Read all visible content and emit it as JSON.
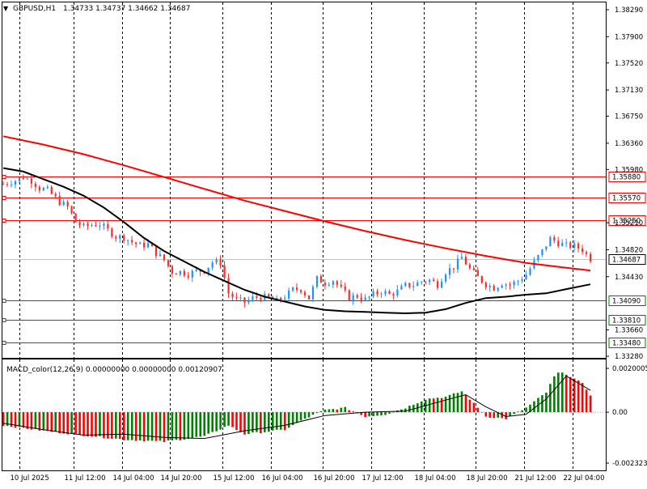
{
  "header": {
    "symbol": "GBPUSD,H1",
    "ohlc": "1.34733 1.34737 1.34662 1.34687"
  },
  "macd_header": "MACD_color(12,26,9) 0.00000000 0.00000000 0.00120907",
  "colors": {
    "bull_candle": "#1e90ff",
    "bear_candle": "#ff2a2a",
    "ma_fast": "#000000",
    "ma_slow": "#ff0000",
    "resistance": "#ff0000",
    "support": "#008000",
    "hist_pos": "#008000",
    "hist_neg": "#ff0000",
    "signal": "#000000",
    "grid": "#000000",
    "current_price_tag": "#000000"
  },
  "chart_data": [
    {
      "type": "candlestick",
      "symbol": "GBPUSD",
      "timeframe": "H1",
      "ylim": [
        1.3328,
        1.3829
      ],
      "yticks": [
        "1.38290",
        "1.37900",
        "1.37520",
        "1.37130",
        "1.36750",
        "1.36360",
        "1.35980",
        "1.35210",
        "1.34820",
        "1.34430",
        "1.33660",
        "1.33280"
      ],
      "xticks": [
        "10 Jul 2025",
        "11 Jul 12:00",
        "14 Jul 04:00",
        "14 Jul 20:00",
        "15 Jul 12:00",
        "16 Jul 04:00",
        "16 Jul 20:00",
        "17 Jul 12:00",
        "18 Jul 04:00",
        "18 Jul 20:00",
        "21 Jul 12:00",
        "22 Jul 04:00"
      ],
      "current_price": "1.34687",
      "horizontal_levels": {
        "resistance": [
          "1.35880",
          "1.35570",
          "1.35250"
        ],
        "support": [
          "1.34090",
          "1.33810",
          "1.33480"
        ]
      },
      "close_path": [
        [
          0,
          1.3577
        ],
        [
          6,
          1.3582
        ],
        [
          10,
          1.3587
        ],
        [
          14,
          1.3582
        ],
        [
          18,
          1.3571
        ],
        [
          22,
          1.3568
        ],
        [
          28,
          1.3551
        ],
        [
          32,
          1.3544
        ],
        [
          36,
          1.3522
        ],
        [
          40,
          1.3515
        ],
        [
          44,
          1.3518
        ],
        [
          48,
          1.3519
        ],
        [
          52,
          1.351
        ],
        [
          56,
          1.3501
        ],
        [
          60,
          1.35
        ],
        [
          64,
          1.3493
        ],
        [
          68,
          1.3488
        ],
        [
          72,
          1.349
        ],
        [
          76,
          1.3477
        ],
        [
          80,
          1.3467
        ],
        [
          84,
          1.345
        ],
        [
          88,
          1.345
        ],
        [
          92,
          1.3447
        ],
        [
          96,
          1.3451
        ],
        [
          100,
          1.3452
        ],
        [
          104,
          1.3464
        ],
        [
          108,
          1.3463
        ],
        [
          112,
          1.3419
        ],
        [
          116,
          1.341
        ],
        [
          120,
          1.3406
        ],
        [
          124,
          1.3412
        ],
        [
          128,
          1.3414
        ],
        [
          132,
          1.3412
        ],
        [
          136,
          1.3408
        ],
        [
          140,
          1.3414
        ],
        [
          144,
          1.3424
        ],
        [
          148,
          1.3425
        ],
        [
          152,
          1.3412
        ],
        [
          156,
          1.344
        ],
        [
          160,
          1.3434
        ],
        [
          164,
          1.3438
        ],
        [
          168,
          1.3425
        ],
        [
          172,
          1.3413
        ],
        [
          176,
          1.3415
        ],
        [
          180,
          1.341
        ],
        [
          184,
          1.3417
        ],
        [
          188,
          1.3422
        ],
        [
          192,
          1.3417
        ],
        [
          196,
          1.3422
        ],
        [
          200,
          1.343
        ],
        [
          204,
          1.3431
        ],
        [
          208,
          1.3436
        ],
        [
          212,
          1.3438
        ],
        [
          216,
          1.3432
        ],
        [
          220,
          1.345
        ],
        [
          224,
          1.3457
        ],
        [
          228,
          1.3471
        ],
        [
          232,
          1.3454
        ],
        [
          236,
          1.3442
        ],
        [
          240,
          1.3432
        ],
        [
          244,
          1.3427
        ],
        [
          248,
          1.3434
        ],
        [
          252,
          1.3431
        ],
        [
          256,
          1.3437
        ],
        [
          260,
          1.3446
        ],
        [
          264,
          1.3464
        ],
        [
          268,
          1.348
        ],
        [
          272,
          1.3498
        ],
        [
          276,
          1.3492
        ],
        [
          280,
          1.3488
        ],
        [
          284,
          1.3487
        ],
        [
          288,
          1.3482
        ],
        [
          290,
          1.3475
        ],
        [
          292,
          1.3469
        ]
      ],
      "ma_fast": [
        [
          0,
          1.36
        ],
        [
          10,
          1.3595
        ],
        [
          20,
          1.3584
        ],
        [
          30,
          1.3573
        ],
        [
          40,
          1.356
        ],
        [
          50,
          1.3543
        ],
        [
          60,
          1.3522
        ],
        [
          70,
          1.3499
        ],
        [
          80,
          1.348
        ],
        [
          90,
          1.3465
        ],
        [
          100,
          1.345
        ],
        [
          110,
          1.3437
        ],
        [
          120,
          1.3424
        ],
        [
          130,
          1.3414
        ],
        [
          140,
          1.3407
        ],
        [
          150,
          1.34
        ],
        [
          160,
          1.3395
        ],
        [
          170,
          1.3393
        ],
        [
          180,
          1.3392
        ],
        [
          190,
          1.3391
        ],
        [
          200,
          1.339
        ],
        [
          210,
          1.3391
        ],
        [
          220,
          1.3396
        ],
        [
          230,
          1.3405
        ],
        [
          240,
          1.3412
        ],
        [
          250,
          1.3414
        ],
        [
          260,
          1.3417
        ],
        [
          270,
          1.3419
        ],
        [
          280,
          1.3425
        ],
        [
          292,
          1.3432
        ]
      ],
      "ma_slow": [
        [
          0,
          1.3646
        ],
        [
          20,
          1.3634
        ],
        [
          40,
          1.362
        ],
        [
          60,
          1.3604
        ],
        [
          80,
          1.3587
        ],
        [
          100,
          1.357
        ],
        [
          120,
          1.3553
        ],
        [
          140,
          1.3538
        ],
        [
          160,
          1.3523
        ],
        [
          180,
          1.3509
        ],
        [
          200,
          1.3496
        ],
        [
          220,
          1.3484
        ],
        [
          240,
          1.3473
        ],
        [
          260,
          1.3463
        ],
        [
          280,
          1.3456
        ],
        [
          292,
          1.3452
        ]
      ]
    },
    {
      "type": "bar",
      "name": "MACD_color(12,26,9)",
      "ylim": [
        -0.002323,
        0.002
      ],
      "yticks": [
        "0.0020005",
        "0.00",
        "-0.002323"
      ],
      "histogram": [
        [
          0,
          -0.0006
        ],
        [
          20,
          -0.00085
        ],
        [
          40,
          -0.00105
        ],
        [
          60,
          -0.00125
        ],
        [
          80,
          -0.00135
        ],
        [
          100,
          -0.0011
        ],
        [
          112,
          -0.0006
        ],
        [
          120,
          -0.001
        ],
        [
          140,
          -0.0008
        ],
        [
          150,
          -0.0003
        ],
        [
          160,
          0.0001
        ],
        [
          170,
          0.0002
        ],
        [
          180,
          -0.0002
        ],
        [
          190,
          -0.0001
        ],
        [
          200,
          0.0002
        ],
        [
          210,
          0.0006
        ],
        [
          220,
          0.0007
        ],
        [
          228,
          0.00095
        ],
        [
          232,
          0.0006
        ],
        [
          240,
          -0.0002
        ],
        [
          250,
          -0.0003
        ],
        [
          260,
          0.0002
        ],
        [
          270,
          0.0009
        ],
        [
          275,
          0.0018
        ],
        [
          280,
          0.00175
        ],
        [
          288,
          0.0013
        ],
        [
          292,
          0.0008
        ]
      ],
      "signal": [
        [
          0,
          -0.0005
        ],
        [
          20,
          -0.0008
        ],
        [
          40,
          -0.00105
        ],
        [
          60,
          -0.001
        ],
        [
          80,
          -0.00115
        ],
        [
          100,
          -0.0012
        ],
        [
          120,
          -0.00085
        ],
        [
          140,
          -0.0006
        ],
        [
          160,
          -0.00015
        ],
        [
          180,
          0.0
        ],
        [
          200,
          5e-05
        ],
        [
          220,
          0.00055
        ],
        [
          230,
          0.0008
        ],
        [
          240,
          0.00025
        ],
        [
          250,
          -0.0002
        ],
        [
          260,
          -0.0001
        ],
        [
          270,
          0.0006
        ],
        [
          280,
          0.00165
        ],
        [
          292,
          0.001
        ]
      ]
    }
  ]
}
